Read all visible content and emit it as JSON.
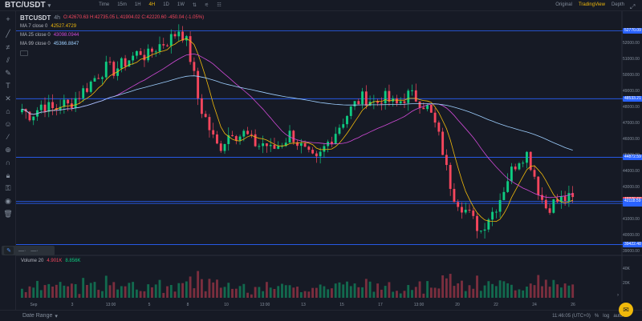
{
  "header": {
    "symbol": "BTC/USDT",
    "intervals": [
      "Time",
      "15m",
      "1H",
      "4H",
      "1D",
      "1W"
    ],
    "active_interval": "4H",
    "views": [
      "Original",
      "TradingView",
      "Depth"
    ],
    "active_view": "TradingView"
  },
  "legend": {
    "symbol": "BTCUSDT",
    "timeframe": "4h",
    "ohlc": "O:42670.63  H:42735.05  L:41904.02  C:42220.60  -450.04 (-1.05%)",
    "ma7_label": "MA 7 close 0",
    "ma7_value": "42527.4729",
    "ma25_label": "MA 25 close 0",
    "ma25_value": "43098.0944",
    "ma99_label": "MA 99 close 0",
    "ma99_value": "45366.8847"
  },
  "volume_legend": {
    "label": "Volume 20",
    "v1": "4.901K",
    "v2": "8.856K"
  },
  "price_axis": [
    "52000.00",
    "51000.00",
    "50000.00",
    "49000.00",
    "48000.00",
    "47000.00",
    "46000.00",
    "45000.00",
    "44000.00",
    "43000.00",
    "42000.00",
    "41000.00",
    "40000.00",
    "39000.00"
  ],
  "price_badges": [
    {
      "text": "52770.09",
      "color": "#2962ff"
    },
    {
      "text": "48533.21",
      "color": "#2962ff"
    },
    {
      "text": "44872.59",
      "color": "#2962ff"
    },
    {
      "text": "41998.02",
      "color": "#2962ff"
    },
    {
      "text": "42220.60",
      "color": "#f6465d"
    },
    {
      "text": "42118.59",
      "color": "#2962ff"
    },
    {
      "text": "39422.48",
      "color": "#2962ff"
    }
  ],
  "volume_axis": [
    "40K",
    "20K"
  ],
  "time_axis": [
    "Sep",
    "3",
    "13:00",
    "5",
    "8",
    "10",
    "13:00",
    "13",
    "15",
    "17",
    "13:00",
    "20",
    "22",
    "24",
    "26"
  ],
  "bottom": {
    "range_label": "Date Range",
    "clock": "11:46:05 (UTC+0)",
    "pct": "%",
    "log": "log",
    "auto": "auto"
  },
  "colors": {
    "up": "#0ecb81",
    "down": "#f6465d",
    "ma7": "#f0b90b",
    "ma25": "#d04ad6",
    "ma99": "#9ecfff",
    "hline": "#2962ff",
    "accent": "#f0b90b"
  },
  "chart_data": {
    "type": "candlestick",
    "ylim": [
      39000,
      53500
    ],
    "hlines": [
      52770.09,
      48533.21,
      44872.59,
      41998.02,
      42118.59,
      39422.48
    ],
    "price_anchors": [
      47900,
      47500,
      47700,
      48200,
      48000,
      47800,
      48300,
      48100,
      48500,
      48900,
      49300,
      49800,
      50200,
      50500,
      50300,
      50600,
      50900,
      51200,
      51500,
      51100,
      51600,
      51900,
      52100,
      52400,
      52900,
      52200,
      50500,
      48200,
      47300,
      46200,
      45400,
      46000,
      46600,
      46200,
      46400,
      45900,
      45600,
      45800,
      45300,
      45600,
      45900,
      46400,
      45800,
      45300,
      44800,
      44600,
      45400,
      46000,
      46600,
      47200,
      47800,
      48300,
      48600,
      48500,
      48200,
      48700,
      48400,
      48100,
      48500,
      48800,
      48600,
      48300,
      47900,
      46900,
      45600,
      43600,
      42400,
      41900,
      41400,
      40800,
      40300,
      41100,
      41600,
      42400,
      43500,
      44300,
      44900,
      45100,
      44000,
      42500,
      41700,
      42000,
      42200,
      42300,
      42200
    ],
    "volume_axis": [
      "40K",
      "20K"
    ]
  }
}
